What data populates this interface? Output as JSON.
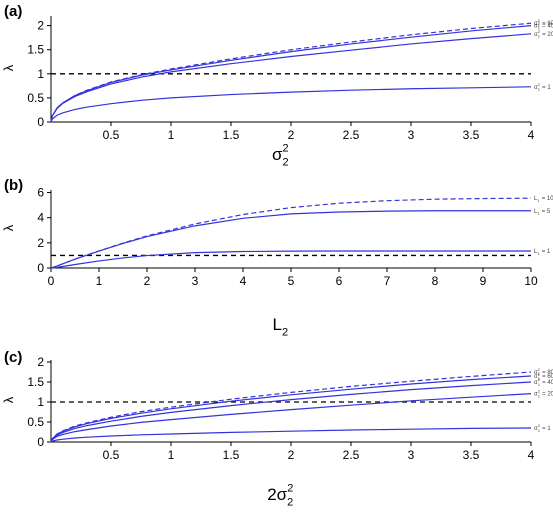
{
  "colors": {
    "curve": "#3333dd",
    "axis": "#000000",
    "threshold": "#000000"
  },
  "chart_data": [
    {
      "type": "line",
      "panel_label": "(a)",
      "xlabel": "σ₂²",
      "ylabel": "λ",
      "xlim": [
        0,
        4
      ],
      "ylim": [
        0,
        2.2
      ],
      "xticks": [
        0.5,
        1,
        1.5,
        2,
        2.5,
        3,
        3.5,
        4
      ],
      "yticks": [
        0,
        0.5,
        1,
        1.5,
        2
      ],
      "threshold": 1,
      "grid": false,
      "x": [
        0.01,
        0.05,
        0.1,
        0.2,
        0.3,
        0.5,
        0.75,
        1,
        1.5,
        2,
        2.5,
        3,
        3.5,
        4
      ],
      "series": [
        {
          "name": "σ₁² = 1",
          "dashed": false,
          "values": [
            0.06,
            0.14,
            0.19,
            0.26,
            0.31,
            0.38,
            0.45,
            0.5,
            0.57,
            0.62,
            0.66,
            0.69,
            0.71,
            0.73
          ]
        },
        {
          "name": "σ₁² = 20",
          "dashed": false,
          "values": [
            0.12,
            0.28,
            0.39,
            0.53,
            0.63,
            0.79,
            0.93,
            1.04,
            1.21,
            1.36,
            1.49,
            1.62,
            1.73,
            1.83
          ]
        },
        {
          "name": "σ₁² = 40",
          "dashed": false,
          "values": [
            0.12,
            0.29,
            0.4,
            0.55,
            0.65,
            0.82,
            0.97,
            1.08,
            1.28,
            1.46,
            1.62,
            1.76,
            1.89,
            2.0
          ]
        },
        {
          "name": "σ₁² = 60",
          "dashed": true,
          "values": [
            0.12,
            0.29,
            0.4,
            0.55,
            0.66,
            0.83,
            0.98,
            1.1,
            1.31,
            1.5,
            1.66,
            1.81,
            1.94,
            2.05
          ]
        }
      ]
    },
    {
      "type": "line",
      "panel_label": "(b)",
      "xlabel": "L₂",
      "ylabel": "λ",
      "xlim": [
        0,
        10
      ],
      "ylim": [
        0,
        6.2
      ],
      "xticks": [
        0,
        1,
        2,
        3,
        4,
        5,
        6,
        7,
        8,
        9,
        10
      ],
      "yticks": [
        0,
        2,
        4,
        6
      ],
      "threshold": 1,
      "grid": false,
      "x": [
        0.1,
        0.5,
        1,
        1.5,
        2,
        3,
        4,
        5,
        6,
        7,
        8,
        9,
        10
      ],
      "series": [
        {
          "name": "L₁ = 1",
          "dashed": false,
          "values": [
            0.03,
            0.28,
            0.56,
            0.8,
            0.99,
            1.22,
            1.31,
            1.34,
            1.35,
            1.35,
            1.35,
            1.35,
            1.35
          ]
        },
        {
          "name": "L₁ = 5",
          "dashed": false,
          "values": [
            0.12,
            0.7,
            1.35,
            1.95,
            2.5,
            3.35,
            3.95,
            4.3,
            4.45,
            4.52,
            4.55,
            4.55,
            4.55
          ]
        },
        {
          "name": "L₁ = 10",
          "dashed": true,
          "values": [
            0.12,
            0.7,
            1.36,
            1.98,
            2.55,
            3.5,
            4.25,
            4.8,
            5.15,
            5.35,
            5.47,
            5.52,
            5.55
          ]
        }
      ]
    },
    {
      "type": "line",
      "panel_label": "(c)",
      "xlabel": "2σ₂²",
      "ylabel": "λ",
      "xlim": [
        0,
        4
      ],
      "ylim": [
        0,
        2.05
      ],
      "xticks": [
        0.5,
        1,
        1.5,
        2,
        2.5,
        3,
        3.5,
        4
      ],
      "yticks": [
        0,
        0.5,
        1,
        1.5,
        2
      ],
      "threshold": 1,
      "grid": false,
      "x": [
        0.01,
        0.05,
        0.1,
        0.2,
        0.3,
        0.5,
        0.75,
        1,
        1.5,
        2,
        2.5,
        3,
        3.5,
        4
      ],
      "series": [
        {
          "name": "σ₁² = 1",
          "dashed": false,
          "values": [
            0.02,
            0.05,
            0.07,
            0.1,
            0.12,
            0.15,
            0.18,
            0.2,
            0.24,
            0.27,
            0.3,
            0.32,
            0.34,
            0.35
          ]
        },
        {
          "name": "σ₁² = 20",
          "dashed": false,
          "values": [
            0.06,
            0.14,
            0.19,
            0.26,
            0.31,
            0.4,
            0.49,
            0.56,
            0.69,
            0.81,
            0.92,
            1.03,
            1.12,
            1.21
          ]
        },
        {
          "name": "σ₁² = 40",
          "dashed": false,
          "values": [
            0.07,
            0.17,
            0.24,
            0.34,
            0.41,
            0.52,
            0.64,
            0.74,
            0.91,
            1.06,
            1.19,
            1.31,
            1.41,
            1.5
          ]
        },
        {
          "name": "σ₁² = 60",
          "dashed": false,
          "values": [
            0.08,
            0.19,
            0.27,
            0.38,
            0.46,
            0.59,
            0.72,
            0.83,
            1.02,
            1.18,
            1.32,
            1.45,
            1.56,
            1.65
          ]
        },
        {
          "name": "σ₁² = 80",
          "dashed": true,
          "values": [
            0.08,
            0.2,
            0.28,
            0.4,
            0.48,
            0.62,
            0.76,
            0.87,
            1.07,
            1.24,
            1.39,
            1.52,
            1.64,
            1.75
          ]
        }
      ]
    }
  ]
}
